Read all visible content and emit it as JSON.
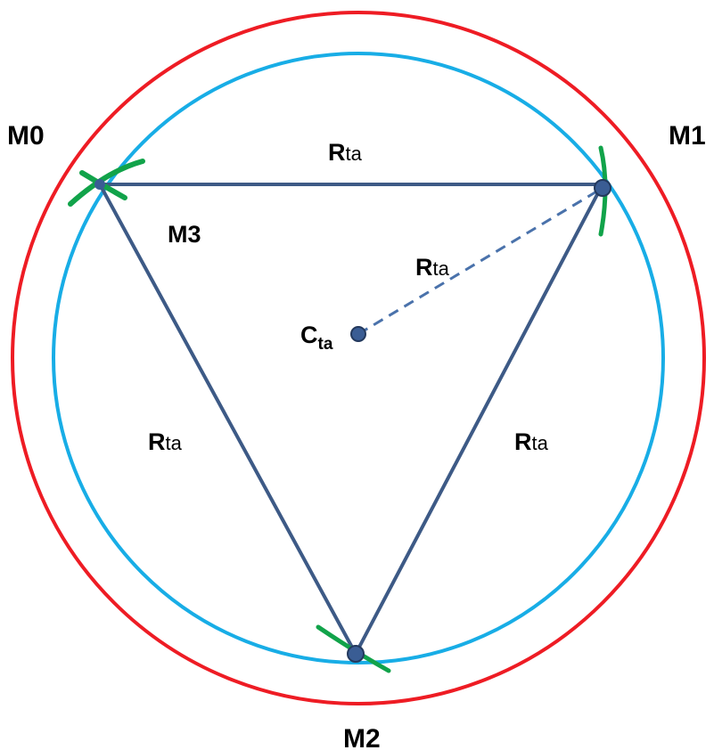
{
  "diagram": {
    "points": {
      "m0": "M0",
      "m1": "M1",
      "m2": "M2",
      "m3": "M3"
    },
    "center": {
      "main": "C",
      "sub": "ta"
    },
    "radius": {
      "main": "R",
      "sub": "ta"
    }
  },
  "colors": {
    "outer_circle": "#ee1c24",
    "inner_circle": "#18ade6",
    "triangle": "#3d5a86",
    "dashed_radius": "#4a72ab",
    "vertex_dot": "#3a5d94",
    "arc_marks": "#11a34a",
    "text": "#000000"
  }
}
